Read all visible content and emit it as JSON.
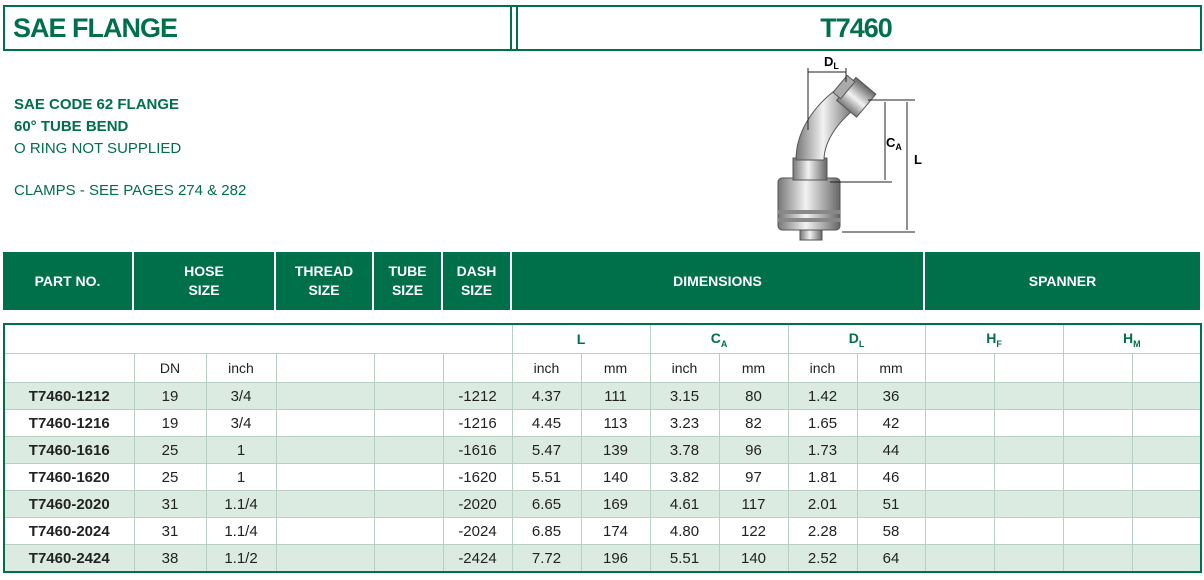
{
  "header": {
    "title": "SAE FLANGE",
    "code": "T7460"
  },
  "description": {
    "lines": [
      "SAE CODE 62 FLANGE",
      "60° TUBE BEND",
      "O RING NOT SUPPLIED"
    ],
    "note": "CLAMPS - SEE PAGES 274 & 282"
  },
  "diagram": {
    "labels": {
      "dl": {
        "main": "D",
        "sub": "L"
      },
      "ca": {
        "main": "C",
        "sub": "A"
      },
      "l": "L"
    }
  },
  "table": {
    "header": [
      [
        "PART NO."
      ],
      [
        "HOSE",
        "SIZE"
      ],
      [
        "THREAD",
        "SIZE"
      ],
      [
        "TUBE",
        "SIZE"
      ],
      [
        "DASH",
        "SIZE"
      ],
      [
        "DIMENSIONS"
      ],
      [
        "SPANNER"
      ]
    ],
    "groups": [
      {
        "main": "L"
      },
      {
        "main": "C",
        "sub": "A"
      },
      {
        "main": "D",
        "sub": "L"
      },
      {
        "main": "H",
        "sub": "F"
      },
      {
        "main": "H",
        "sub": "M"
      }
    ],
    "units": [
      "DN",
      "inch",
      "inch",
      "mm",
      "inch",
      "mm",
      "inch",
      "mm"
    ],
    "rows": [
      [
        "T7460-1212",
        "19",
        "3/4",
        "-1212",
        "4.37",
        "111",
        "3.15",
        "80",
        "1.42",
        "36"
      ],
      [
        "T7460-1216",
        "19",
        "3/4",
        "-1216",
        "4.45",
        "113",
        "3.23",
        "82",
        "1.65",
        "42"
      ],
      [
        "T7460-1616",
        "25",
        "1",
        "-1616",
        "5.47",
        "139",
        "3.78",
        "96",
        "1.73",
        "44"
      ],
      [
        "T7460-1620",
        "25",
        "1",
        "-1620",
        "5.51",
        "140",
        "3.82",
        "97",
        "1.81",
        "46"
      ],
      [
        "T7460-2020",
        "31",
        "1.1/4",
        "-2020",
        "6.65",
        "169",
        "4.61",
        "117",
        "2.01",
        "51"
      ],
      [
        "T7460-2024",
        "31",
        "1.1/4",
        "-2024",
        "6.85",
        "174",
        "4.80",
        "122",
        "2.28",
        "58"
      ],
      [
        "T7460-2424",
        "38",
        "1.1/2",
        "-2424",
        "7.72",
        "196",
        "5.51",
        "140",
        "2.52",
        "64"
      ]
    ]
  }
}
